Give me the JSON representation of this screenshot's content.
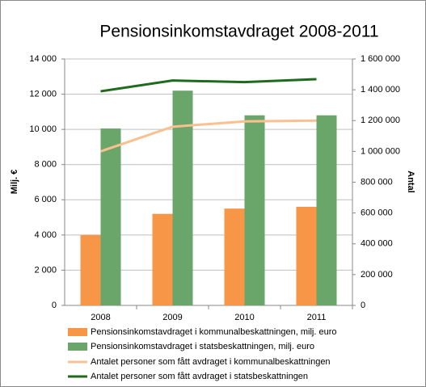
{
  "chart_data": {
    "type": "bar-line",
    "title": "Pensionsinkomstavdraget 2008-2011",
    "ylabel": "Milj. €",
    "y2label": "Antal",
    "categories": [
      "2008",
      "2009",
      "2010",
      "2011"
    ],
    "ylim": [
      0,
      14000
    ],
    "yticks": [
      0,
      {
        "value": 2000,
        "label": "2 000"
      },
      {
        "value": 4000,
        "label": "4 000"
      },
      {
        "value": 6000,
        "label": "6 000"
      },
      {
        "value": 8000,
        "label": "8 000"
      },
      {
        "value": 10000,
        "label": "10 000"
      },
      {
        "value": 12000,
        "label": "12 000"
      },
      {
        "value": 14000,
        "label": "14 000"
      }
    ],
    "y2lim": [
      0,
      1600000
    ],
    "y2ticks": [
      0,
      {
        "value": 200000,
        "label": "200 000"
      },
      {
        "value": 400000,
        "label": "400 000"
      },
      {
        "value": 600000,
        "label": "600 000"
      },
      {
        "value": 800000,
        "label": "800 000"
      },
      {
        "value": 1000000,
        "label": "1 000 000"
      },
      {
        "value": 1200000,
        "label": "1 200 000"
      },
      {
        "value": 1400000,
        "label": "1 400 000"
      },
      {
        "value": 1600000,
        "label": "1 600 000"
      }
    ],
    "grid": true,
    "series": [
      {
        "name": "Pensionsinkomstavdraget i kommunalbeskattningen, milj. euro",
        "type": "bar",
        "color": "#f79646",
        "values": [
          4000,
          5200,
          5500,
          5600
        ]
      },
      {
        "name": "Pensionsinkomstavdraget i statsbeskattningen, milj. euro",
        "type": "bar",
        "color": "#6aa56a",
        "values": [
          10050,
          12200,
          10800,
          10800
        ]
      },
      {
        "name": "Antalet personer som fått avdraget i kommunalbeskattningen",
        "type": "line",
        "axis": "y2",
        "color": "#fac090",
        "values": [
          1000000,
          1160000,
          1195000,
          1200000
        ]
      },
      {
        "name": "Antalet personer som fått avdraget i statsbeskattningen",
        "type": "line",
        "axis": "y2",
        "color": "#1e6b1e",
        "values": [
          1390000,
          1460000,
          1450000,
          1469000
        ]
      }
    ]
  }
}
